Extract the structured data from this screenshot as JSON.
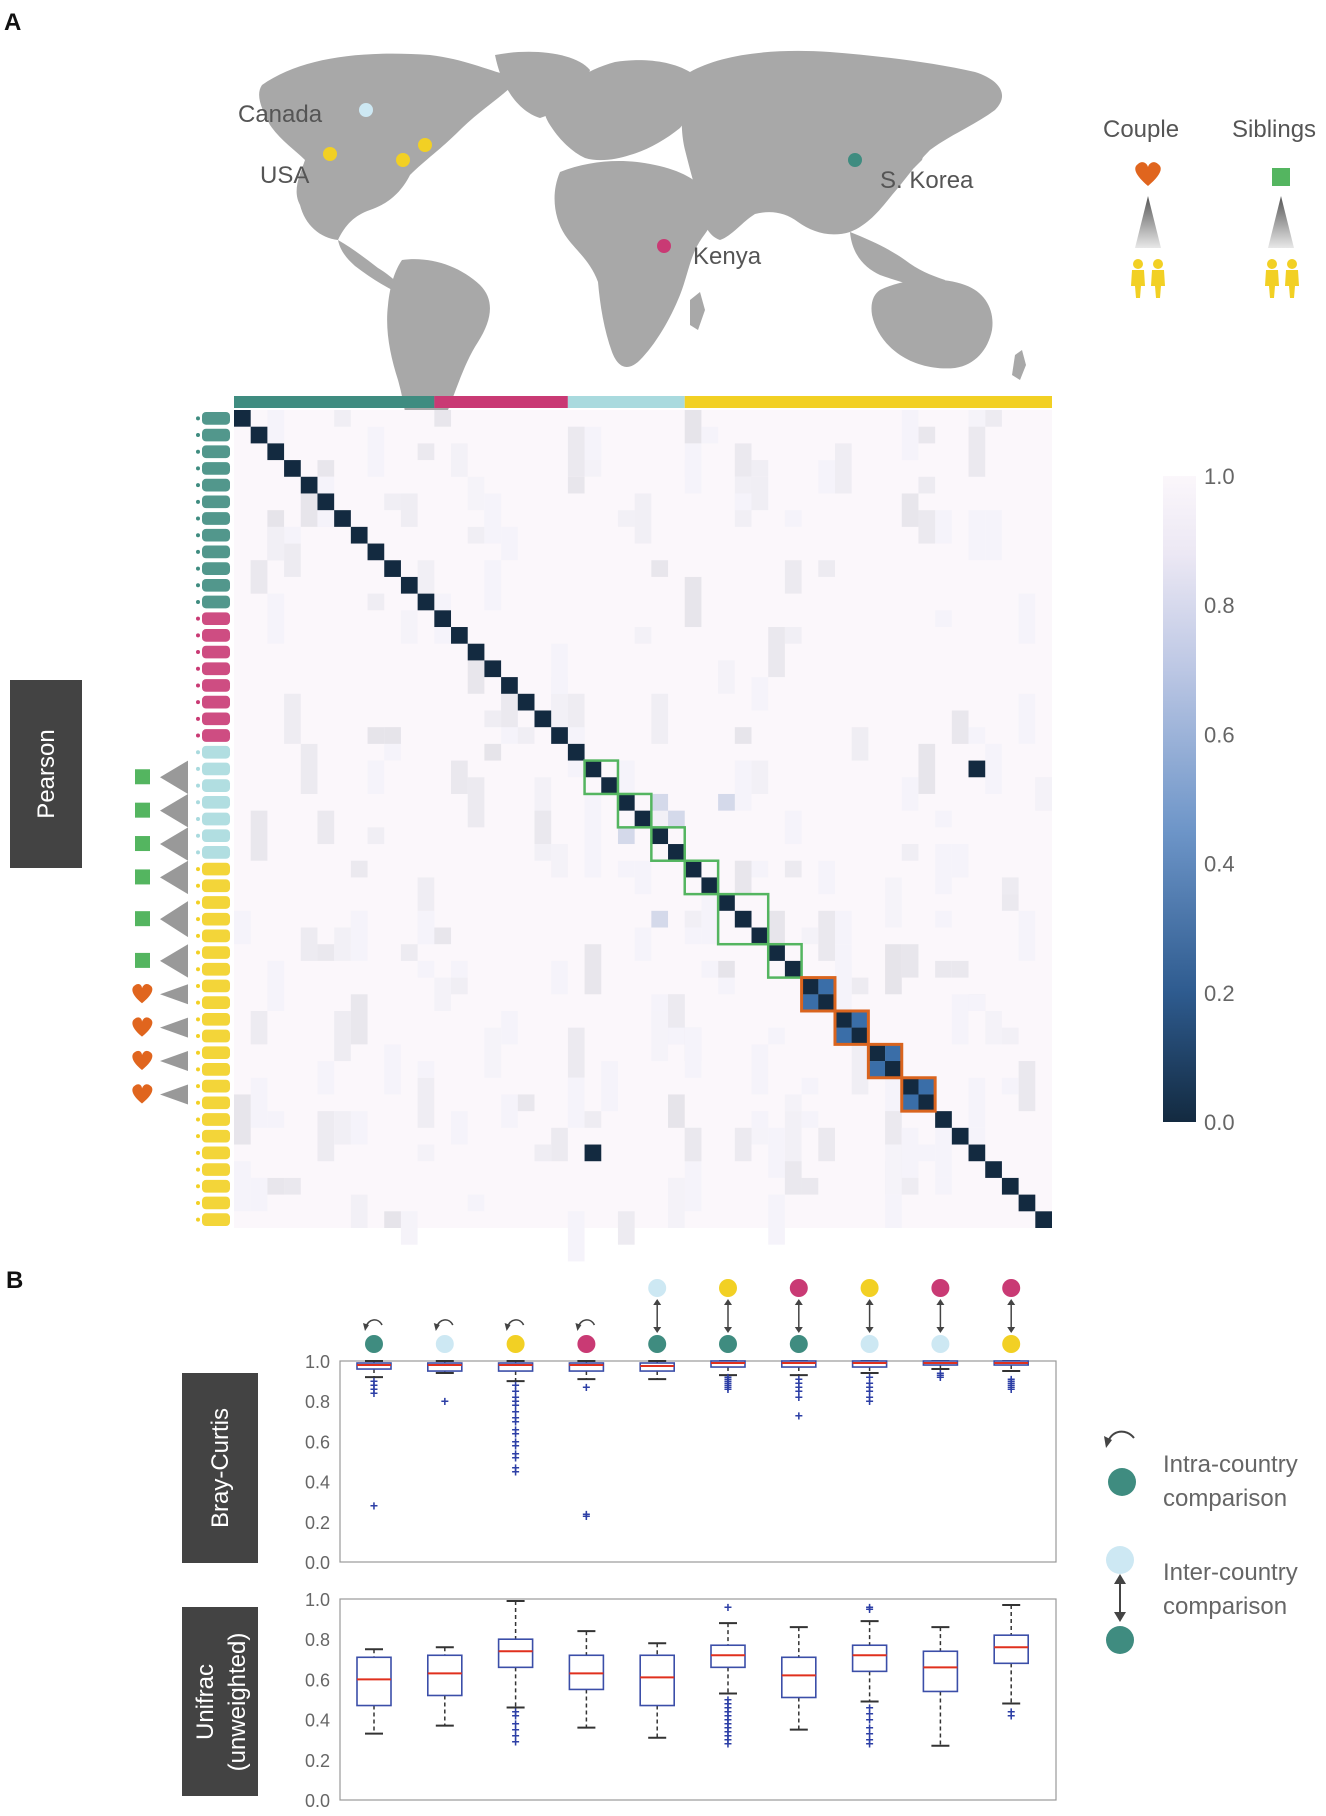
{
  "panels": {
    "a": "A",
    "b": "B"
  },
  "map": {
    "countries": [
      "Canada",
      "USA",
      "S. Korea",
      "Kenya"
    ]
  },
  "legend_top": {
    "couple": "Couple",
    "siblings": "Siblings"
  },
  "colors": {
    "korea": "#3f8c80",
    "kenya": "#c93a74",
    "canada": "#a9dade",
    "usa": "#f2d024",
    "sibling_box": "#54b560",
    "couple_box": "#d9641e",
    "couple_heart": "#e0651e",
    "cmap_high": "#fbf7fb",
    "cmap_low": "#132a40"
  },
  "chart_data": [
    {
      "type": "heatmap",
      "title": "",
      "ylabel": "Pearson",
      "metric_range": [
        0.0,
        1.0
      ],
      "n_samples": 49,
      "diagonal_value": 0.0,
      "off_diagonal_typical": 1.0,
      "country_groups": [
        {
          "country": "S. Korea",
          "n": 12
        },
        {
          "country": "Kenya",
          "n": 8
        },
        {
          "country": "Canada",
          "n": 7
        },
        {
          "country": "USA",
          "n": 22
        }
      ],
      "sibling_group_highlights": [
        [
          21,
          22
        ],
        [
          23,
          24
        ],
        [
          25,
          26
        ],
        [
          27,
          28
        ],
        [
          29,
          31
        ],
        [
          32,
          33
        ]
      ],
      "couple_group_highlights": [
        [
          34,
          35
        ],
        [
          36,
          37
        ],
        [
          38,
          39
        ],
        [
          40,
          41
        ]
      ],
      "off_diagonal_dark_cells": [
        [
          21,
          44
        ],
        [
          44,
          21
        ]
      ],
      "colorbar_ticks": [
        "0.0",
        "0.2",
        "0.4",
        "0.6",
        "0.8",
        "1.0"
      ]
    },
    {
      "type": "box",
      "ylabel": "Bray-Curtis",
      "ylim": [
        0.0,
        1.0
      ],
      "ytick_labels": [
        "0.0",
        "0.2",
        "0.4",
        "0.6",
        "0.8",
        "1.0"
      ],
      "comparisons": [
        "S. Korea",
        "Canada",
        "USA",
        "Kenya",
        "Canada vs S. Korea",
        "USA vs S. Korea",
        "Kenya vs S. Korea",
        "USA vs Canada",
        "Kenya vs Canada",
        "Kenya vs USA"
      ],
      "series": [
        {
          "q1": 0.96,
          "median": 0.98,
          "q3": 0.99,
          "whislo": 0.92,
          "whishi": 1.0,
          "fliers": [
            0.28,
            0.84,
            0.86,
            0.88,
            0.9
          ]
        },
        {
          "q1": 0.95,
          "median": 0.98,
          "q3": 0.99,
          "whislo": 0.94,
          "whishi": 1.0,
          "fliers": [
            0.8
          ]
        },
        {
          "q1": 0.95,
          "median": 0.98,
          "q3": 0.99,
          "whislo": 0.9,
          "whishi": 1.0,
          "fliers": [
            0.45,
            0.47,
            0.52,
            0.54,
            0.58,
            0.6,
            0.64,
            0.66,
            0.7,
            0.72,
            0.75,
            0.78,
            0.8,
            0.82,
            0.85,
            0.88
          ]
        },
        {
          "q1": 0.95,
          "median": 0.98,
          "q3": 0.99,
          "whislo": 0.91,
          "whishi": 1.0,
          "fliers": [
            0.23,
            0.24,
            0.87
          ]
        },
        {
          "q1": 0.95,
          "median": 0.975,
          "q3": 0.99,
          "whislo": 0.91,
          "whishi": 1.0,
          "fliers": []
        },
        {
          "q1": 0.97,
          "median": 0.99,
          "q3": 1.0,
          "whislo": 0.93,
          "whishi": 1.0,
          "fliers": [
            0.86,
            0.87,
            0.88,
            0.89,
            0.9,
            0.91,
            0.92
          ]
        },
        {
          "q1": 0.97,
          "median": 0.99,
          "q3": 1.0,
          "whislo": 0.93,
          "whishi": 1.0,
          "fliers": [
            0.73,
            0.82,
            0.85,
            0.87,
            0.89,
            0.91
          ]
        },
        {
          "q1": 0.97,
          "median": 0.99,
          "q3": 1.0,
          "whislo": 0.94,
          "whishi": 1.0,
          "fliers": [
            0.8,
            0.82,
            0.85,
            0.87,
            0.89,
            0.92
          ]
        },
        {
          "q1": 0.98,
          "median": 0.99,
          "q3": 1.0,
          "whislo": 0.96,
          "whishi": 1.0,
          "fliers": [
            0.92,
            0.93,
            0.94
          ]
        },
        {
          "q1": 0.98,
          "median": 0.99,
          "q3": 1.0,
          "whislo": 0.95,
          "whishi": 1.0,
          "fliers": [
            0.86,
            0.87,
            0.88,
            0.89,
            0.9,
            0.91
          ]
        }
      ]
    },
    {
      "type": "box",
      "ylabel": "Unifrac",
      "ylabel_sub": "(unweighted)",
      "ylim": [
        0.0,
        1.0
      ],
      "ytick_labels": [
        "0.0",
        "0.2",
        "0.4",
        "0.6",
        "0.8",
        "1.0"
      ],
      "comparisons": [
        "S. Korea",
        "Canada",
        "USA",
        "Kenya",
        "Canada vs S. Korea",
        "USA vs S. Korea",
        "Kenya vs S. Korea",
        "USA vs Canada",
        "Kenya vs Canada",
        "Kenya vs USA"
      ],
      "series": [
        {
          "q1": 0.47,
          "median": 0.6,
          "q3": 0.71,
          "whislo": 0.33,
          "whishi": 0.75,
          "fliers": []
        },
        {
          "q1": 0.52,
          "median": 0.63,
          "q3": 0.72,
          "whislo": 0.37,
          "whishi": 0.76,
          "fliers": []
        },
        {
          "q1": 0.66,
          "median": 0.74,
          "q3": 0.8,
          "whislo": 0.46,
          "whishi": 0.99,
          "fliers": [
            0.29,
            0.32,
            0.35,
            0.38,
            0.42,
            0.44
          ]
        },
        {
          "q1": 0.55,
          "median": 0.63,
          "q3": 0.72,
          "whislo": 0.36,
          "whishi": 0.84,
          "fliers": []
        },
        {
          "q1": 0.47,
          "median": 0.61,
          "q3": 0.72,
          "whislo": 0.31,
          "whishi": 0.78,
          "fliers": []
        },
        {
          "q1": 0.66,
          "median": 0.72,
          "q3": 0.77,
          "whislo": 0.53,
          "whishi": 0.88,
          "fliers": [
            0.28,
            0.3,
            0.32,
            0.34,
            0.36,
            0.38,
            0.4,
            0.42,
            0.44,
            0.46,
            0.48,
            0.5,
            0.96
          ]
        },
        {
          "q1": 0.51,
          "median": 0.62,
          "q3": 0.71,
          "whislo": 0.35,
          "whishi": 0.86,
          "fliers": []
        },
        {
          "q1": 0.64,
          "median": 0.72,
          "q3": 0.77,
          "whislo": 0.49,
          "whishi": 0.89,
          "fliers": [
            0.28,
            0.3,
            0.33,
            0.36,
            0.4,
            0.43,
            0.46,
            0.95,
            0.96
          ]
        },
        {
          "q1": 0.54,
          "median": 0.66,
          "q3": 0.74,
          "whislo": 0.27,
          "whishi": 0.86,
          "fliers": []
        },
        {
          "q1": 0.68,
          "median": 0.76,
          "q3": 0.82,
          "whislo": 0.48,
          "whishi": 0.97,
          "fliers": [
            0.42,
            0.44
          ]
        }
      ]
    }
  ],
  "legend_b": {
    "intra_line1": "Intra-country",
    "intra_line2": "comparison",
    "inter_line1": "Inter-country",
    "inter_line2": "comparison"
  }
}
